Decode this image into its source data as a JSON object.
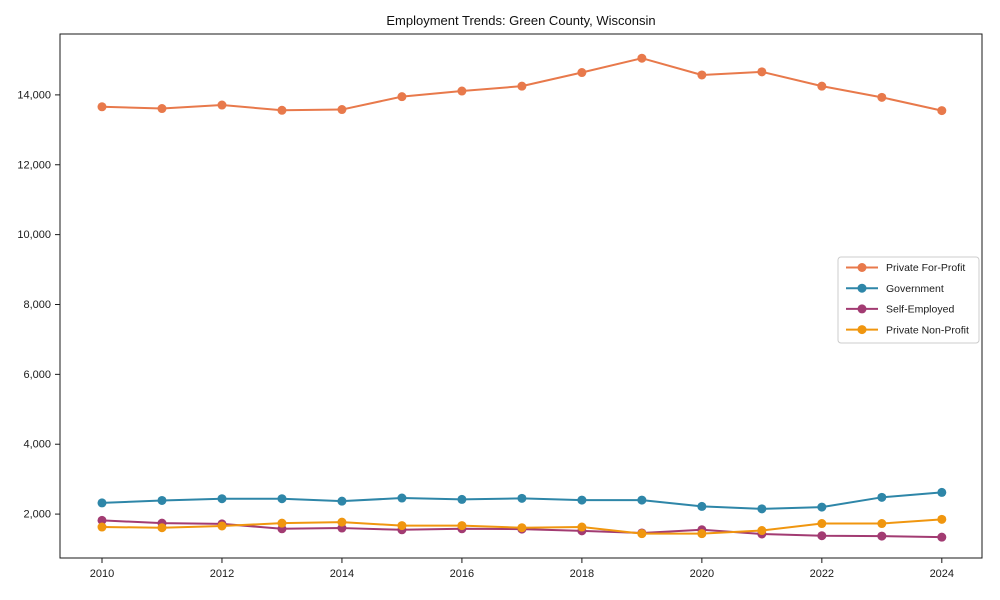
{
  "figure": {
    "background": "#ffffff"
  },
  "chart_data": {
    "type": "line",
    "title": "Employment Trends: Green County, Wisconsin",
    "xlabel": "",
    "ylabel": "",
    "x": [
      2010,
      2011,
      2012,
      2013,
      2014,
      2015,
      2016,
      2017,
      2018,
      2019,
      2020,
      2021,
      2022,
      2023,
      2024
    ],
    "series": [
      {
        "name": "Private For-Profit",
        "color": "#E8794B",
        "values": [
          13660,
          13610,
          13710,
          13560,
          13580,
          13950,
          14110,
          14250,
          14640,
          15050,
          14570,
          14660,
          14250,
          13930,
          13550
        ]
      },
      {
        "name": "Government",
        "color": "#2E86A8",
        "values": [
          2320,
          2390,
          2440,
          2440,
          2370,
          2460,
          2420,
          2450,
          2400,
          2400,
          2220,
          2150,
          2200,
          2480,
          2620
        ]
      },
      {
        "name": "Self-Employed",
        "color": "#A23B72",
        "values": [
          1820,
          1740,
          1720,
          1580,
          1600,
          1550,
          1580,
          1570,
          1520,
          1460,
          1550,
          1430,
          1380,
          1370,
          1340
        ]
      },
      {
        "name": "Private Non-Profit",
        "color": "#F0960F",
        "values": [
          1630,
          1610,
          1660,
          1740,
          1770,
          1670,
          1670,
          1610,
          1630,
          1440,
          1440,
          1530,
          1730,
          1730,
          1850
        ]
      }
    ],
    "xticks": {
      "values": [
        2010,
        2012,
        2014,
        2016,
        2018,
        2020,
        2022,
        2024
      ],
      "labels": [
        "2010",
        "2012",
        "2014",
        "2016",
        "2018",
        "2020",
        "2022",
        "2024"
      ]
    },
    "yticks": {
      "values": [
        2000,
        4000,
        6000,
        8000,
        10000,
        12000,
        14000
      ],
      "labels": [
        "2,000",
        "4,000",
        "6,000",
        "8,000",
        "10,000",
        "12,000",
        "14,000"
      ]
    },
    "xlim": [
      2009.3,
      2024.67
    ],
    "ylim": [
      743,
      15743
    ],
    "grid": false,
    "legend": {
      "position": "right-middle",
      "entries": [
        "Private For-Profit",
        "Government",
        "Self-Employed",
        "Private Non-Profit"
      ]
    }
  }
}
